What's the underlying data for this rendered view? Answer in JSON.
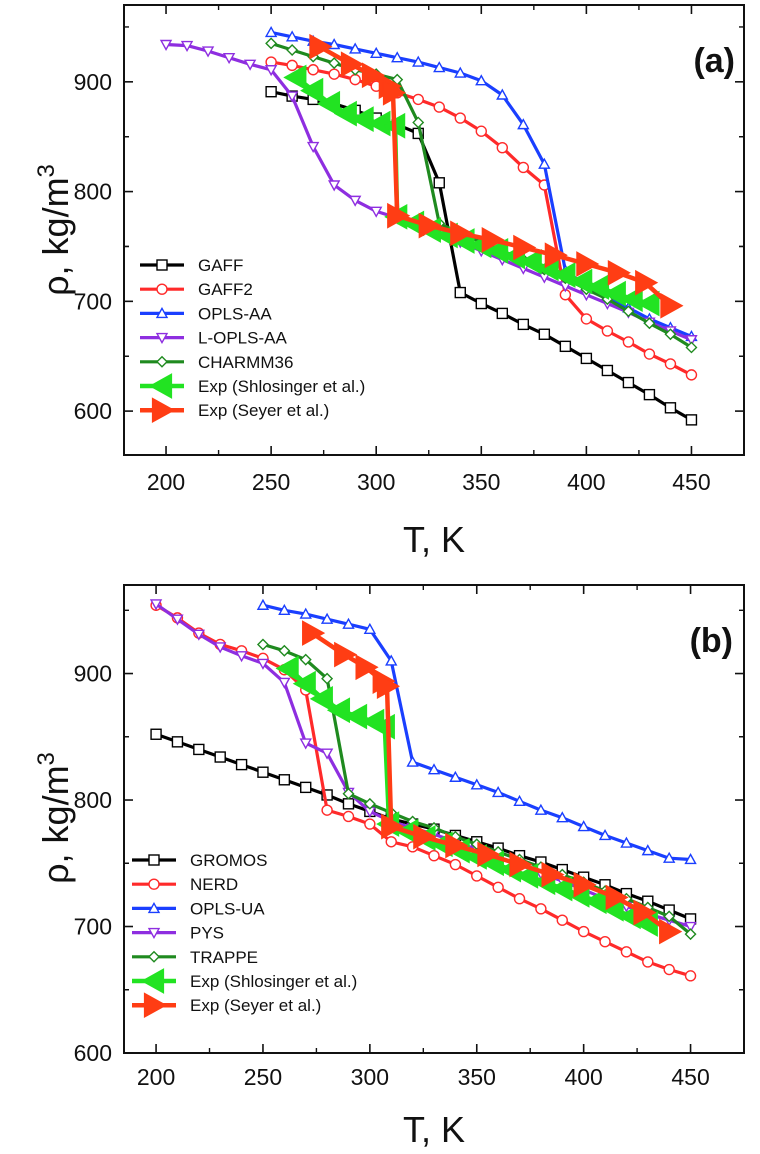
{
  "chart_data": [
    {
      "type": "line",
      "panel_label": "(a)",
      "xlabel": "T, K",
      "ylabel": "ρ, kg/m",
      "ylabel_sup": "3",
      "xlim": [
        180,
        475
      ],
      "ylim": [
        560,
        970
      ],
      "xticks": [
        200,
        250,
        300,
        350,
        400,
        450
      ],
      "yticks": [
        600,
        700,
        800,
        900
      ],
      "legend_position": "bottom-left",
      "series": [
        {
          "name": "GAFF",
          "color": "#000000",
          "marker": "square",
          "x": [
            250,
            260,
            270,
            280,
            290,
            300,
            310,
            320,
            330,
            340,
            350,
            360,
            370,
            380,
            390,
            400,
            410,
            420,
            430,
            440,
            450
          ],
          "y": [
            891,
            887,
            884,
            880,
            874,
            867,
            861,
            853,
            808,
            708,
            698,
            689,
            679,
            670,
            659,
            648,
            637,
            626,
            615,
            603,
            592
          ]
        },
        {
          "name": "GAFF2",
          "color": "#ff2a2a",
          "marker": "circle",
          "x": [
            250,
            260,
            270,
            280,
            290,
            300,
            310,
            320,
            330,
            340,
            350,
            360,
            370,
            380,
            390,
            400,
            410,
            420,
            430,
            440,
            450
          ],
          "y": [
            918,
            915,
            911,
            907,
            902,
            896,
            890,
            884,
            877,
            867,
            855,
            840,
            822,
            806,
            706,
            684,
            673,
            663,
            652,
            643,
            633
          ]
        },
        {
          "name": "OPLS-AA",
          "color": "#1a3fff",
          "marker": "triangle-up",
          "x": [
            250,
            260,
            270,
            280,
            290,
            300,
            310,
            320,
            330,
            340,
            350,
            360,
            370,
            380,
            390,
            400,
            410,
            420,
            430,
            440,
            450
          ],
          "y": [
            945,
            941,
            937,
            934,
            930,
            926,
            922,
            918,
            913,
            908,
            901,
            888,
            861,
            825,
            728,
            714,
            704,
            694,
            684,
            676,
            668
          ]
        },
        {
          "name": "L-OPLS-AA",
          "color": "#8e2ee0",
          "marker": "triangle-down",
          "x": [
            200,
            210,
            220,
            230,
            240,
            250,
            260,
            270,
            280,
            290,
            300,
            310,
            320,
            330,
            340,
            350,
            360,
            370,
            380,
            390,
            400,
            410,
            420,
            430,
            440,
            450
          ],
          "y": [
            934,
            933,
            928,
            922,
            916,
            911,
            887,
            841,
            806,
            792,
            782,
            776,
            768,
            761,
            754,
            746,
            738,
            730,
            722,
            714,
            706,
            698,
            690,
            681,
            673,
            665
          ]
        },
        {
          "name": "CHARMM36",
          "color": "#1f8a1f",
          "marker": "diamond",
          "x": [
            250,
            260,
            270,
            280,
            290,
            300,
            310,
            320,
            330,
            340,
            350,
            360,
            370,
            380,
            390,
            400,
            410,
            420,
            430,
            440,
            450
          ],
          "y": [
            935,
            929,
            923,
            917,
            911,
            907,
            902,
            863,
            771,
            762,
            754,
            746,
            738,
            729,
            721,
            711,
            702,
            691,
            680,
            670,
            658
          ]
        },
        {
          "name": "Exp (Shlosinger et al.)",
          "color": "#22e322",
          "marker": "triangle-left",
          "x": [
            262,
            270,
            278,
            286,
            294,
            302,
            309,
            310,
            318,
            326,
            334,
            342,
            350,
            358,
            366,
            374,
            382,
            390,
            398,
            406,
            414,
            422,
            430
          ],
          "y": [
            904,
            892,
            880,
            871,
            866,
            862,
            860,
            777,
            771,
            765,
            760,
            755,
            751,
            746,
            741,
            736,
            730,
            724,
            718,
            713,
            707,
            702,
            698
          ]
        },
        {
          "name": "Exp (Seyer et al.)",
          "color": "#ff3d14",
          "marker": "triangle-right",
          "x": [
            273,
            288,
            298,
            306,
            308,
            310,
            325,
            340,
            355,
            370,
            385,
            400,
            415,
            428,
            440
          ],
          "y": [
            932,
            916,
            906,
            896,
            890,
            778,
            769,
            762,
            756,
            749,
            742,
            734,
            726,
            717,
            696
          ]
        }
      ]
    },
    {
      "type": "line",
      "panel_label": "(b)",
      "xlabel": "T, K",
      "ylabel": "ρ, kg/m",
      "ylabel_sup": "3",
      "xlim": [
        185,
        475
      ],
      "ylim": [
        600,
        970
      ],
      "xticks": [
        200,
        250,
        300,
        350,
        400,
        450
      ],
      "yticks": [
        600,
        700,
        800,
        900
      ],
      "legend_position": "bottom-left",
      "series": [
        {
          "name": "GROMOS",
          "color": "#000000",
          "marker": "square",
          "x": [
            200,
            210,
            220,
            230,
            240,
            250,
            260,
            270,
            280,
            290,
            300,
            310,
            320,
            330,
            340,
            350,
            360,
            370,
            380,
            390,
            400,
            410,
            420,
            430,
            440,
            450
          ],
          "y": [
            852,
            846,
            840,
            834,
            828,
            822,
            816,
            810,
            804,
            797,
            791,
            785,
            781,
            777,
            772,
            767,
            762,
            756,
            751,
            745,
            739,
            733,
            726,
            720,
            713,
            706
          ]
        },
        {
          "name": "NERD",
          "color": "#ff2a2a",
          "marker": "circle",
          "x": [
            200,
            210,
            220,
            230,
            240,
            250,
            260,
            270,
            280,
            290,
            300,
            310,
            320,
            330,
            340,
            350,
            360,
            370,
            380,
            390,
            400,
            410,
            420,
            430,
            440,
            450
          ],
          "y": [
            954,
            944,
            932,
            923,
            918,
            912,
            903,
            887,
            792,
            787,
            781,
            767,
            763,
            756,
            749,
            740,
            731,
            722,
            714,
            705,
            696,
            688,
            680,
            672,
            666,
            661
          ]
        },
        {
          "name": "OPLS-UA",
          "color": "#1a3fff",
          "marker": "triangle-up",
          "x": [
            250,
            260,
            270,
            280,
            290,
            300,
            310,
            320,
            330,
            340,
            350,
            360,
            370,
            380,
            390,
            400,
            410,
            420,
            430,
            440,
            450
          ],
          "y": [
            954,
            950,
            947,
            943,
            939,
            935,
            910,
            830,
            824,
            818,
            812,
            806,
            799,
            792,
            786,
            779,
            772,
            766,
            760,
            754,
            753
          ]
        },
        {
          "name": "PYS",
          "color": "#8e2ee0",
          "marker": "triangle-down",
          "x": [
            200,
            210,
            220,
            230,
            240,
            250,
            260,
            270,
            280,
            290,
            300,
            310,
            320,
            330,
            340,
            350,
            360,
            370,
            380,
            390,
            400,
            410,
            420,
            430,
            440,
            450
          ],
          "y": [
            955,
            943,
            931,
            921,
            914,
            908,
            893,
            845,
            837,
            806,
            791,
            783,
            778,
            773,
            767,
            761,
            755,
            749,
            742,
            736,
            729,
            722,
            716,
            710,
            705,
            700
          ]
        },
        {
          "name": "TRAPPE",
          "color": "#1f8a1f",
          "marker": "diamond",
          "x": [
            250,
            260,
            270,
            280,
            290,
            300,
            310,
            320,
            330,
            340,
            350,
            360,
            370,
            380,
            390,
            400,
            410,
            420,
            430,
            440,
            450
          ],
          "y": [
            923,
            918,
            911,
            896,
            805,
            797,
            790,
            783,
            778,
            771,
            765,
            759,
            753,
            747,
            741,
            735,
            728,
            722,
            715,
            708,
            694
          ]
        },
        {
          "name": "Exp (Shlosinger et al.)",
          "color": "#22e322",
          "marker": "triangle-left",
          "x": [
            262,
            270,
            278,
            286,
            294,
            302,
            307,
            309,
            318,
            326,
            334,
            342,
            350,
            358,
            366,
            374,
            382,
            390,
            398,
            406,
            414,
            422,
            430
          ],
          "y": [
            904,
            892,
            880,
            871,
            866,
            862,
            858,
            781,
            775,
            770,
            765,
            760,
            755,
            750,
            745,
            740,
            735,
            730,
            725,
            720,
            714,
            708,
            702
          ]
        },
        {
          "name": "Exp (Seyer et al.)",
          "color": "#ff3d14",
          "marker": "triangle-right",
          "x": [
            273,
            288,
            298,
            306,
            308,
            310,
            325,
            340,
            355,
            370,
            385,
            400,
            415,
            428,
            440
          ],
          "y": [
            932,
            915,
            905,
            894,
            890,
            779,
            771,
            764,
            757,
            749,
            741,
            733,
            723,
            711,
            696
          ]
        }
      ]
    }
  ]
}
